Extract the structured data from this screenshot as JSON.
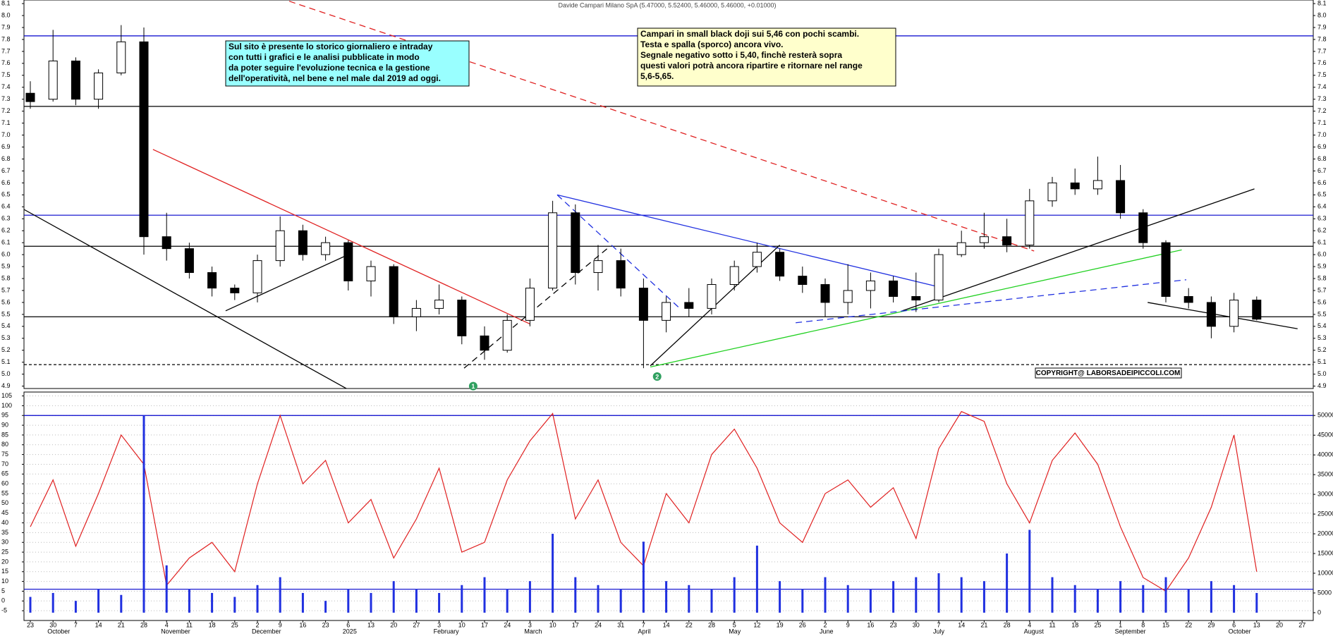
{
  "chart_data": [
    {
      "type": "candlestick",
      "title": "Davide Campari Milano SpA (5.47000, 5.52400, 5.46000, 5.46000, +0.01000)",
      "categories": [
        "23",
        "30",
        "7",
        "14",
        "21",
        "28",
        "4",
        "11",
        "18",
        "25",
        "2",
        "9",
        "16",
        "23",
        "6",
        "13",
        "20",
        "27",
        "3",
        "10",
        "17",
        "24",
        "3",
        "10",
        "17",
        "24",
        "31",
        "7",
        "14",
        "22",
        "28",
        "5",
        "12",
        "19",
        "26",
        "2",
        "9",
        "16",
        "23",
        "30",
        "7",
        "14",
        "21",
        "28",
        "4",
        "11",
        "18",
        "25",
        "1",
        "8",
        "15",
        "22",
        "29",
        "6",
        "13",
        "20",
        "27"
      ],
      "months": [
        {
          "label": "October",
          "week": 1
        },
        {
          "label": "November",
          "week": 6
        },
        {
          "label": "December",
          "week": 10
        },
        {
          "label": "2025",
          "week": 14
        },
        {
          "label": "February",
          "week": 18
        },
        {
          "label": "March",
          "week": 22
        },
        {
          "label": "April",
          "week": 27
        },
        {
          "label": "May",
          "week": 31
        },
        {
          "label": "June",
          "week": 35
        },
        {
          "label": "July",
          "week": 40
        },
        {
          "label": "August",
          "week": 44
        },
        {
          "label": "September",
          "week": 48
        },
        {
          "label": "October",
          "week": 53
        }
      ],
      "open": [
        7.35,
        7.3,
        7.62,
        7.3,
        7.52,
        7.78,
        6.15,
        6.05,
        5.85,
        5.72,
        5.68,
        5.95,
        6.2,
        6.0,
        6.1,
        5.78,
        5.9,
        5.48,
        5.55,
        5.62,
        5.32,
        5.2,
        5.45,
        5.72,
        6.35,
        5.85,
        5.95,
        5.72,
        5.45,
        5.6,
        5.55,
        5.75,
        5.9,
        6.02,
        5.82,
        5.75,
        5.6,
        5.7,
        5.78,
        5.65,
        5.62,
        6.0,
        6.1,
        6.15,
        6.08,
        6.45,
        6.6,
        6.55,
        6.62,
        6.35,
        6.1,
        5.65,
        5.6,
        5.4,
        5.62,
        null,
        null
      ],
      "high": [
        7.45,
        7.88,
        7.65,
        7.55,
        7.92,
        7.9,
        6.35,
        6.1,
        5.9,
        5.75,
        6.0,
        6.32,
        6.25,
        6.15,
        6.12,
        5.95,
        5.92,
        5.62,
        5.75,
        5.65,
        5.4,
        5.5,
        5.8,
        6.45,
        6.42,
        6.08,
        6.05,
        5.8,
        5.65,
        5.72,
        5.8,
        5.95,
        6.1,
        6.05,
        5.9,
        5.8,
        5.92,
        5.85,
        5.82,
        5.85,
        6.05,
        6.2,
        6.35,
        6.3,
        6.55,
        6.65,
        6.72,
        6.82,
        6.75,
        6.38,
        6.12,
        5.72,
        5.65,
        5.68,
        5.65,
        null,
        null
      ],
      "low": [
        7.22,
        7.28,
        7.25,
        7.22,
        7.5,
        6.0,
        5.95,
        5.8,
        5.65,
        5.62,
        5.6,
        5.9,
        5.95,
        5.95,
        5.7,
        5.65,
        5.42,
        5.36,
        5.5,
        5.25,
        5.12,
        5.18,
        5.4,
        5.7,
        5.75,
        5.7,
        5.65,
        5.05,
        5.35,
        5.48,
        5.5,
        5.7,
        5.85,
        5.78,
        5.68,
        5.48,
        5.5,
        5.55,
        5.6,
        5.52,
        5.6,
        5.98,
        6.05,
        6.02,
        6.05,
        6.4,
        6.5,
        6.5,
        6.3,
        6.05,
        5.6,
        5.55,
        5.3,
        5.35,
        5.45,
        null,
        null
      ],
      "close": [
        7.28,
        7.62,
        7.3,
        7.52,
        7.78,
        6.15,
        6.05,
        5.85,
        5.72,
        5.68,
        5.95,
        6.2,
        6.0,
        6.1,
        5.78,
        5.9,
        5.48,
        5.55,
        5.62,
        5.32,
        5.2,
        5.45,
        5.72,
        6.35,
        5.85,
        5.95,
        5.72,
        5.45,
        5.6,
        5.55,
        5.75,
        5.9,
        6.02,
        5.82,
        5.75,
        5.6,
        5.7,
        5.78,
        5.65,
        5.62,
        6.0,
        6.1,
        6.15,
        6.08,
        6.45,
        6.6,
        6.55,
        6.62,
        6.35,
        6.1,
        5.65,
        5.6,
        5.4,
        5.62,
        5.46,
        null,
        null
      ],
      "ylim": [
        4.88,
        8.13
      ],
      "yticks": [
        4.9,
        {
          "value": 5,
          "label": "5.0"
        },
        5.1,
        5.2,
        5.3,
        5.4,
        5.5,
        5.6,
        5.7,
        5.8,
        5.9,
        {
          "value": 6,
          "label": "6.0"
        },
        6.1,
        6.2,
        6.3,
        6.4,
        6.5,
        6.6,
        6.7,
        6.8,
        6.9,
        {
          "value": 7,
          "label": "7.0"
        },
        7.1,
        7.2,
        7.3,
        7.4,
        7.5,
        7.6,
        7.7,
        7.8,
        7.9,
        {
          "value": 8,
          "label": "8.0"
        },
        8.1
      ],
      "levels": [
        {
          "value": 7.83,
          "color": "#0000cc",
          "dash": false
        },
        {
          "value": 7.24,
          "color": "#000000",
          "dash": false
        },
        {
          "value": 6.33,
          "color": "#0000cc",
          "dash": false
        },
        {
          "value": 6.07,
          "color": "#000000",
          "dash": false
        },
        {
          "value": 5.48,
          "color": "#000000",
          "dash": false
        },
        {
          "value": 5.08,
          "color": "#000000",
          "dash": true
        }
      ],
      "trendlines": [
        {
          "from": [
            11.4,
            8.12
          ],
          "to": [
            44.2,
            6.03
          ],
          "color": "#e02020",
          "dash": true
        },
        {
          "from": [
            5.4,
            6.88
          ],
          "to": [
            22.0,
            5.42
          ],
          "color": "#e02020",
          "dash": false
        },
        {
          "from": [
            -0.3,
            6.38
          ],
          "to": [
            14.2,
            4.85
          ],
          "color": "#000000",
          "dash": false
        },
        {
          "from": [
            8.6,
            5.53
          ],
          "to": [
            14.0,
            6.0
          ],
          "color": "#000000",
          "dash": false
        },
        {
          "from": [
            19.1,
            5.05
          ],
          "to": [
            25.4,
            6.05
          ],
          "color": "#000000",
          "dash": true
        },
        {
          "from": [
            23.2,
            6.5
          ],
          "to": [
            40.0,
            5.73
          ],
          "color": "#2030e0",
          "dash": false
        },
        {
          "from": [
            23.2,
            6.5
          ],
          "to": [
            28.6,
            5.55
          ],
          "color": "#2030e0",
          "dash": true
        },
        {
          "from": [
            27.3,
            5.07
          ],
          "to": [
            33.0,
            6.08
          ],
          "color": "#000000",
          "dash": false
        },
        {
          "from": [
            27.3,
            5.06
          ],
          "to": [
            50.7,
            6.04
          ],
          "color": "#20d020",
          "dash": false
        },
        {
          "from": [
            38.4,
            5.53
          ],
          "to": [
            53.9,
            6.55
          ],
          "color": "#000000",
          "dash": false
        },
        {
          "from": [
            33.7,
            5.43
          ],
          "to": [
            50.9,
            5.79
          ],
          "color": "#2030e0",
          "dash": true
        },
        {
          "from": [
            49.2,
            5.6
          ],
          "to": [
            55.8,
            5.38
          ],
          "color": "#000000",
          "dash": false
        }
      ],
      "markers": [
        {
          "label": "1",
          "x": 19.5,
          "y": 4.9,
          "color": "#30a060"
        },
        {
          "label": "2",
          "x": 27.6,
          "y": 4.98,
          "color": "#30a060"
        }
      ],
      "notes": [
        {
          "background": "#99ffff",
          "lines": [
            "Sul sito è presente lo storico giornaliero e intraday",
            "con tutti i grafici e le analisi pubblicate in modo",
            "da poter seguire l'evoluzione tecnica e la gestione",
            "dell'operatività, nel bene e nel male dal 2019 ad oggi."
          ]
        },
        {
          "background": "#ffffcc",
          "lines": [
            "Campari in small black doji sui 5,46 con pochi scambi.",
            "Testa e spalla (sporco) ancora vivo.",
            "Segnale negativo sotto i 5,40, finchè resterà sopra",
            "questi valori potrà ancora ripartire e ritornare nel range",
            "5,6-5,65."
          ]
        }
      ],
      "copyright": "COPYRIGHT@ LABORSADEIPICCOLI.COM"
    },
    {
      "type": "line-bar",
      "series": [
        {
          "color": "#e02020",
          "kind": "line",
          "values": [
            38,
            62,
            28,
            55,
            85,
            70,
            8,
            22,
            30,
            15,
            60,
            95,
            60,
            72,
            40,
            52,
            22,
            42,
            68,
            25,
            30,
            62,
            82,
            96,
            42,
            62,
            30,
            18,
            55,
            40,
            75,
            88,
            68,
            40,
            30,
            55,
            62,
            48,
            58,
            32,
            78,
            97,
            92,
            60,
            40,
            72,
            86,
            70,
            38,
            12,
            5,
            22,
            48,
            85,
            15,
            null,
            null
          ]
        },
        {
          "color": "#2030e0",
          "kind": "bar",
          "axis": "y2",
          "values": [
            4000,
            5000,
            3000,
            6000,
            4500,
            50000,
            12000,
            6000,
            5000,
            4000,
            7000,
            9000,
            5000,
            3000,
            6000,
            5000,
            8000,
            6000,
            5000,
            7000,
            9000,
            6000,
            8000,
            20000,
            9000,
            7000,
            6000,
            18000,
            8000,
            7000,
            6000,
            9000,
            17000,
            8000,
            6000,
            9000,
            7000,
            6000,
            8000,
            9000,
            10000,
            9000,
            8000,
            15000,
            21000,
            9000,
            7000,
            6000,
            8000,
            7000,
            9000,
            6000,
            8000,
            7000,
            5000,
            null,
            null
          ]
        }
      ],
      "ylim": [
        -10,
        107
      ],
      "yticks": [
        -5,
        0,
        5,
        10,
        15,
        20,
        25,
        30,
        35,
        40,
        45,
        50,
        55,
        60,
        65,
        70,
        75,
        80,
        85,
        90,
        95,
        100,
        105
      ],
      "y2lim": [
        -1980,
        55940
      ],
      "y2ticks": [
        0,
        5000,
        10000,
        15000,
        20000,
        25000,
        30000,
        35000,
        40000,
        45000,
        50000
      ],
      "levels": [
        {
          "value": 95,
          "color": "#0000cc"
        },
        {
          "value": 6,
          "color": "#0000cc"
        }
      ],
      "grid": true
    }
  ]
}
